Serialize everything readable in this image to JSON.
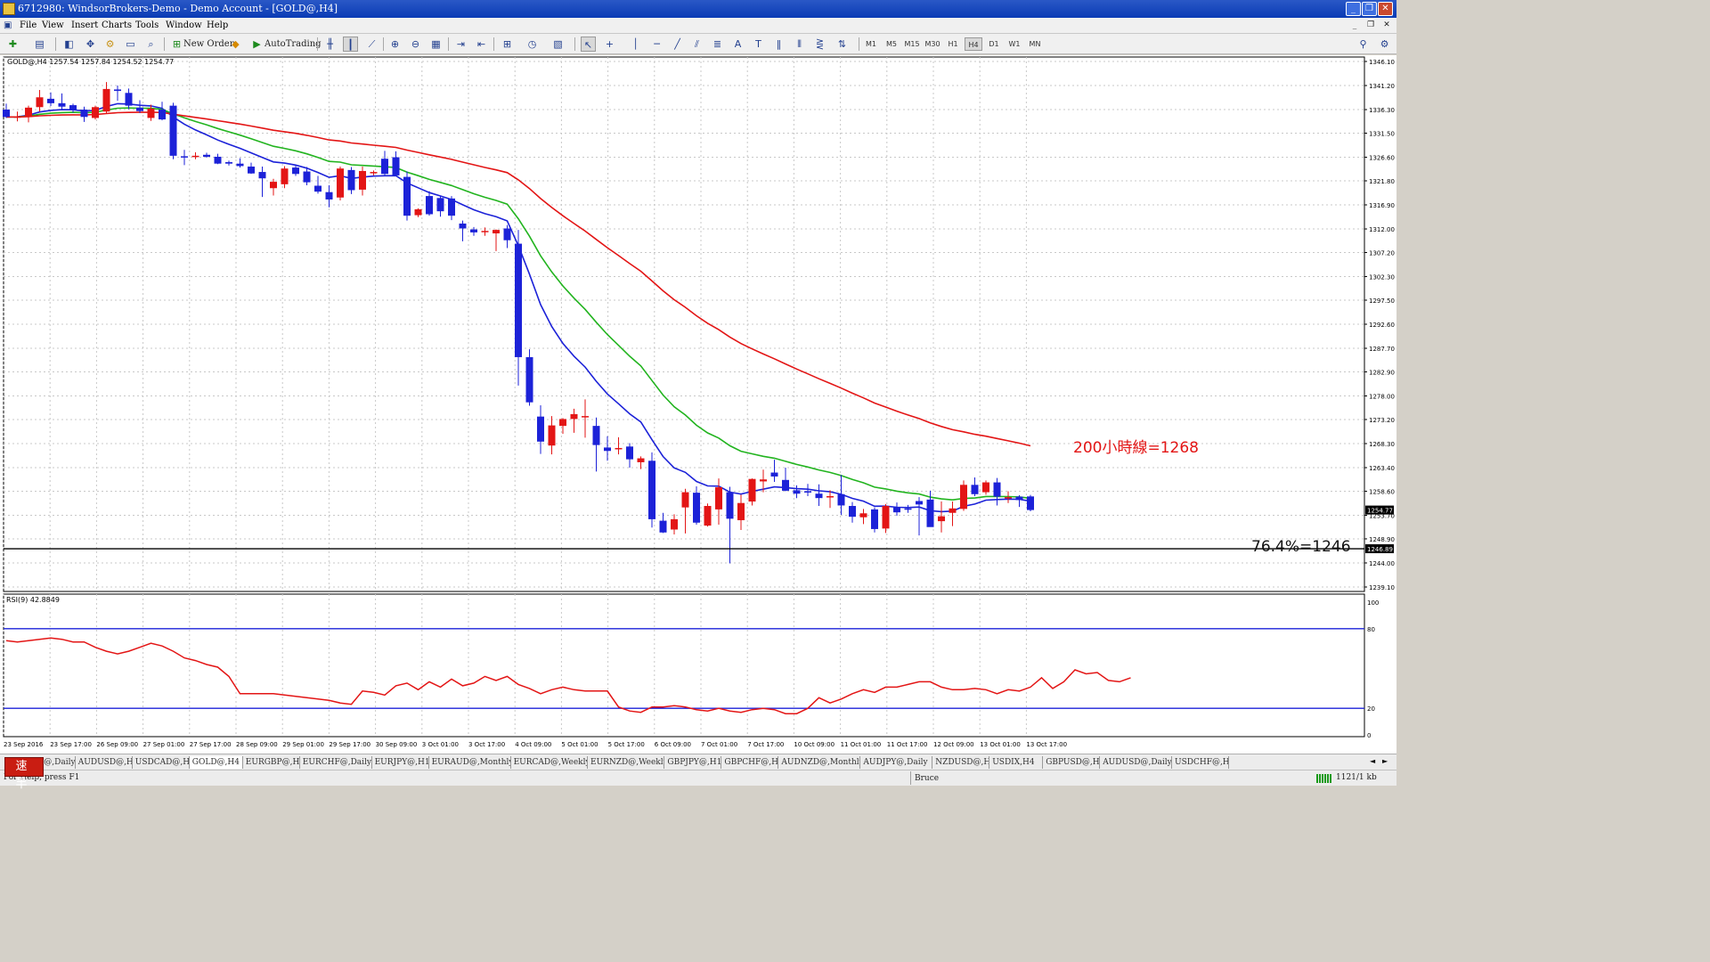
{
  "window": {
    "title": "6712980: WindsorBrokers-Demo - Demo Account - [GOLD@,H4]",
    "minimize": "_",
    "restore": "❐",
    "close": "✕",
    "mdi_min": "_",
    "mdi_restore": "❐",
    "mdi_close": "✕"
  },
  "menu": {
    "items": [
      "File",
      "View",
      "Insert",
      "Charts",
      "Tools",
      "Window",
      "Help"
    ]
  },
  "toolbar": {
    "new_order": "New Order",
    "auto_trading": "AutoTrading",
    "timeframes": [
      "M1",
      "M5",
      "M15",
      "M30",
      "H1",
      "H4",
      "D1",
      "W1",
      "MN"
    ],
    "active_timeframe": "H4",
    "icons": [
      "new-chart-icon",
      "profiles-icon",
      "market-watch-icon",
      "navigator-icon",
      "terminal-icon",
      "strategy-tester-icon",
      "new-order-icon",
      "metaeditor-icon",
      "bar-chart-icon",
      "candlestick-icon",
      "line-chart-icon",
      "zoom-in-icon",
      "zoom-out-icon",
      "tile-windows-icon",
      "autoscroll-icon",
      "chart-shift-icon",
      "indicators-icon",
      "periods-icon",
      "templates-icon",
      "cursor-icon",
      "crosshair-icon",
      "vertical-line-icon",
      "horizontal-line-icon",
      "trendline-icon",
      "equidistant-channel-icon",
      "text-icon",
      "text-label-icon",
      "gann-icon",
      "fibonacci-icon",
      "arrows-icon",
      "search-icon",
      "settings-icon"
    ]
  },
  "chart_data": {
    "type": "candlestick",
    "symbol": "GOLD@,H4",
    "ohlc_header": "GOLD@,H4  1257.54 1257.84 1254.52 1254.77",
    "price_axis": [
      "1346.10",
      "1341.20",
      "1336.30",
      "1331.50",
      "1326.60",
      "1321.80",
      "1316.90",
      "1312.00",
      "1307.20",
      "1302.30",
      "1297.50",
      "1292.60",
      "1287.70",
      "1282.90",
      "1278.00",
      "1273.20",
      "1268.30",
      "1263.40",
      "1258.60",
      "1253.70",
      "1248.90",
      "1244.00",
      "1239.10"
    ],
    "ylim": [
      1239.1,
      1346.1
    ],
    "current_price": "1254.77",
    "hline_price": "1246.89",
    "hline_value": 1246.89,
    "date_axis": [
      "23 Sep 2016",
      "23 Sep 17:00",
      "26 Sep 09:00",
      "27 Sep 01:00",
      "27 Sep 17:00",
      "28 Sep 09:00",
      "29 Sep 01:00",
      "29 Sep 17:00",
      "30 Sep 09:00",
      "3 Oct 01:00",
      "3 Oct 17:00",
      "4 Oct 09:00",
      "5 Oct 01:00",
      "5 Oct 17:00",
      "6 Oct 09:00",
      "7 Oct 01:00",
      "7 Oct 17:00",
      "10 Oct 09:00",
      "11 Oct 01:00",
      "11 Oct 17:00",
      "12 Oct 09:00",
      "13 Oct 01:00",
      "13 Oct 17:00"
    ],
    "candles": [
      [
        1336.3,
        1337.5,
        1334.6,
        1334.8
      ],
      [
        1334.8,
        1335.9,
        1333.9,
        1334.9
      ],
      [
        1334.8,
        1337.1,
        1333.7,
        1336.7
      ],
      [
        1336.8,
        1340.3,
        1335.9,
        1338.8
      ],
      [
        1338.5,
        1339.8,
        1337.0,
        1337.6
      ],
      [
        1337.6,
        1339.6,
        1336.4,
        1336.9
      ],
      [
        1337.2,
        1337.5,
        1335.7,
        1336.2
      ],
      [
        1336.3,
        1336.9,
        1333.8,
        1334.8
      ],
      [
        1334.6,
        1337.1,
        1334.3,
        1336.8
      ],
      [
        1335.9,
        1341.9,
        1335.4,
        1340.5
      ],
      [
        1340.4,
        1341.2,
        1338.1,
        1340.1
      ],
      [
        1339.7,
        1340.6,
        1336.4,
        1337.1
      ],
      [
        1336.7,
        1338.2,
        1335.6,
        1336.0
      ],
      [
        1334.6,
        1337.3,
        1334.0,
        1336.5
      ],
      [
        1336.3,
        1337.9,
        1334.1,
        1334.3
      ],
      [
        1337.1,
        1337.7,
        1326.2,
        1326.9
      ],
      [
        1326.8,
        1328.1,
        1325.0,
        1326.7
      ],
      [
        1326.7,
        1327.6,
        1326.2,
        1326.9
      ],
      [
        1327.1,
        1327.5,
        1326.5,
        1326.7
      ],
      [
        1326.7,
        1327.3,
        1325.2,
        1325.3
      ],
      [
        1325.6,
        1325.9,
        1324.9,
        1325.3
      ],
      [
        1325.3,
        1326.4,
        1324.5,
        1324.8
      ],
      [
        1324.7,
        1325.5,
        1323.2,
        1323.3
      ],
      [
        1323.6,
        1324.7,
        1318.5,
        1322.3
      ],
      [
        1320.3,
        1322.2,
        1318.8,
        1321.6
      ],
      [
        1321.1,
        1324.8,
        1320.3,
        1324.3
      ],
      [
        1324.5,
        1325.0,
        1322.8,
        1323.2
      ],
      [
        1323.7,
        1324.6,
        1320.9,
        1321.5
      ],
      [
        1320.8,
        1322.8,
        1319.2,
        1319.6
      ],
      [
        1319.5,
        1320.9,
        1316.4,
        1318.0
      ],
      [
        1318.4,
        1324.7,
        1317.8,
        1324.3
      ],
      [
        1324.0,
        1324.6,
        1319.1,
        1319.9
      ],
      [
        1320.0,
        1324.7,
        1318.8,
        1323.8
      ],
      [
        1323.4,
        1323.9,
        1322.9,
        1323.6
      ],
      [
        1326.3,
        1327.9,
        1322.9,
        1323.2
      ],
      [
        1326.6,
        1327.8,
        1322.7,
        1322.9
      ],
      [
        1322.6,
        1323.7,
        1313.7,
        1314.7
      ],
      [
        1314.8,
        1316.2,
        1314.4,
        1316.0
      ],
      [
        1318.7,
        1319.7,
        1314.7,
        1315.0
      ],
      [
        1318.3,
        1318.7,
        1314.5,
        1315.6
      ],
      [
        1318.2,
        1318.7,
        1313.8,
        1314.7
      ],
      [
        1313.1,
        1313.7,
        1309.5,
        1312.1
      ],
      [
        1311.9,
        1312.4,
        1310.6,
        1311.3
      ],
      [
        1311.5,
        1312.3,
        1310.6,
        1311.6
      ],
      [
        1311.1,
        1311.9,
        1307.5,
        1311.8
      ],
      [
        1312.1,
        1312.8,
        1308.1,
        1309.7
      ],
      [
        1309.0,
        1311.8,
        1280.1,
        1285.9
      ],
      [
        1285.9,
        1287.5,
        1276.0,
        1276.7
      ],
      [
        1273.8,
        1276.1,
        1266.2,
        1268.7
      ],
      [
        1267.9,
        1273.9,
        1266.1,
        1272.0
      ],
      [
        1271.9,
        1273.5,
        1270.3,
        1273.3
      ],
      [
        1273.3,
        1275.4,
        1270.5,
        1274.3
      ],
      [
        1273.9,
        1277.3,
        1269.5,
        1273.9
      ],
      [
        1271.9,
        1273.6,
        1262.6,
        1268.0
      ],
      [
        1267.5,
        1269.8,
        1264.8,
        1266.8
      ],
      [
        1267.4,
        1269.6,
        1266.1,
        1267.4
      ],
      [
        1267.7,
        1268.4,
        1263.4,
        1265.1
      ],
      [
        1264.5,
        1265.7,
        1263.1,
        1265.3
      ],
      [
        1264.8,
        1266.5,
        1251.2,
        1252.9
      ],
      [
        1252.6,
        1254.2,
        1250.1,
        1250.2
      ],
      [
        1250.8,
        1253.9,
        1249.8,
        1252.9
      ],
      [
        1255.3,
        1259.1,
        1250.0,
        1258.4
      ],
      [
        1258.3,
        1259.6,
        1251.8,
        1252.2
      ],
      [
        1251.6,
        1256.1,
        1251.4,
        1255.6
      ],
      [
        1254.9,
        1261.2,
        1251.8,
        1259.4
      ],
      [
        1258.4,
        1259.5,
        1243.9,
        1253.0
      ],
      [
        1252.7,
        1257.9,
        1250.7,
        1256.2
      ],
      [
        1256.5,
        1261.2,
        1255.7,
        1261.1
      ],
      [
        1260.6,
        1263.0,
        1258.4,
        1261.0
      ],
      [
        1262.4,
        1265.0,
        1260.5,
        1261.6
      ],
      [
        1260.9,
        1263.4,
        1258.6,
        1258.7
      ],
      [
        1258.8,
        1259.8,
        1257.2,
        1258.1
      ],
      [
        1258.6,
        1260.1,
        1257.6,
        1258.5
      ],
      [
        1258.1,
        1260.0,
        1255.6,
        1257.2
      ],
      [
        1257.6,
        1258.8,
        1255.2,
        1257.6
      ],
      [
        1258.0,
        1261.9,
        1253.8,
        1255.7
      ],
      [
        1255.6,
        1256.4,
        1252.2,
        1253.4
      ],
      [
        1253.3,
        1255.0,
        1251.9,
        1254.1
      ],
      [
        1254.9,
        1255.3,
        1250.2,
        1250.9
      ],
      [
        1251.0,
        1256.0,
        1250.1,
        1255.6
      ],
      [
        1255.3,
        1256.3,
        1253.6,
        1254.3
      ],
      [
        1255.1,
        1255.8,
        1254.2,
        1255.0
      ],
      [
        1256.6,
        1257.4,
        1249.6,
        1255.9
      ],
      [
        1256.9,
        1258.7,
        1251.5,
        1251.3
      ],
      [
        1252.5,
        1256.5,
        1250.2,
        1253.5
      ],
      [
        1254.2,
        1256.5,
        1251.5,
        1255.1
      ],
      [
        1255.0,
        1260.8,
        1254.6,
        1259.9
      ],
      [
        1259.9,
        1261.4,
        1257.6,
        1258.0
      ],
      [
        1258.4,
        1260.8,
        1257.9,
        1260.4
      ],
      [
        1260.4,
        1261.3,
        1255.7,
        1257.5
      ],
      [
        1257.4,
        1258.6,
        1256.2,
        1257.4
      ],
      [
        1257.5,
        1257.8,
        1255.4,
        1256.8
      ],
      [
        1257.54,
        1257.84,
        1254.52,
        1254.77
      ]
    ],
    "moving_averages": [
      {
        "name": "blue",
        "color": "#1c22d8",
        "period": 10
      },
      {
        "name": "green",
        "color": "#22b41f",
        "period": 20
      },
      {
        "name": "red",
        "color": "#e31515",
        "period": 50
      }
    ],
    "annotations": [
      {
        "text": "200小時線=1268",
        "color": "#e31515"
      },
      {
        "text": "76.4%=1246",
        "color": "#111111"
      }
    ],
    "rsi": {
      "label": "RSI(9) 42.8849",
      "levels": [
        80,
        20
      ],
      "axis": [
        "100",
        "80",
        "20",
        "0"
      ],
      "values": [
        71,
        70,
        71,
        72,
        73,
        72,
        70,
        70,
        66,
        63,
        61,
        63,
        66,
        69,
        67,
        63,
        58,
        56,
        53,
        51,
        44,
        31,
        31,
        31,
        31,
        30,
        29,
        28,
        27,
        26,
        24,
        23,
        33,
        32,
        30,
        37,
        39,
        34,
        40,
        36,
        42,
        37,
        39,
        44,
        41,
        44,
        38,
        35,
        31,
        34,
        36,
        34,
        33,
        33,
        33,
        21,
        18,
        17,
        21,
        21,
        22,
        21,
        19,
        18,
        20,
        18,
        17,
        19,
        20,
        19,
        16,
        16,
        20,
        28,
        24,
        27,
        31,
        34,
        32,
        36,
        36,
        38,
        40,
        40,
        36,
        34,
        34,
        35,
        34,
        31,
        34,
        33,
        36,
        43,
        35,
        40,
        49,
        46,
        47,
        41,
        40,
        43
      ]
    }
  },
  "tabs": [
    "NZDUSD@,Daily",
    "AUDUSD@,H1",
    "USDCAD@,H4",
    "GOLD@,H4",
    "EURGBP@,H4",
    "EURCHF@,Daily",
    "EURJPY@,H1",
    "EURAUD@,Monthly",
    "EURCAD@,Weekly",
    "EURNZD@,Weekly",
    "GBPJPY@,H1",
    "GBPCHF@,H1",
    "AUDNZD@,Monthly",
    "AUDJPY@,Daily",
    "NZDUSD@,H4",
    "USDIX,H4",
    "GBPUSD@,H1",
    "AUDUSD@,Daily",
    "USDCHF@,H4"
  ],
  "active_tab": "GOLD@,H4",
  "tab_scroll_left": "◄",
  "tab_scroll_right": "►",
  "status": {
    "help": "For Help, press F1",
    "profile": "Bruce",
    "connection": "1121/1 kb"
  },
  "ime": {
    "label": "速 半"
  }
}
